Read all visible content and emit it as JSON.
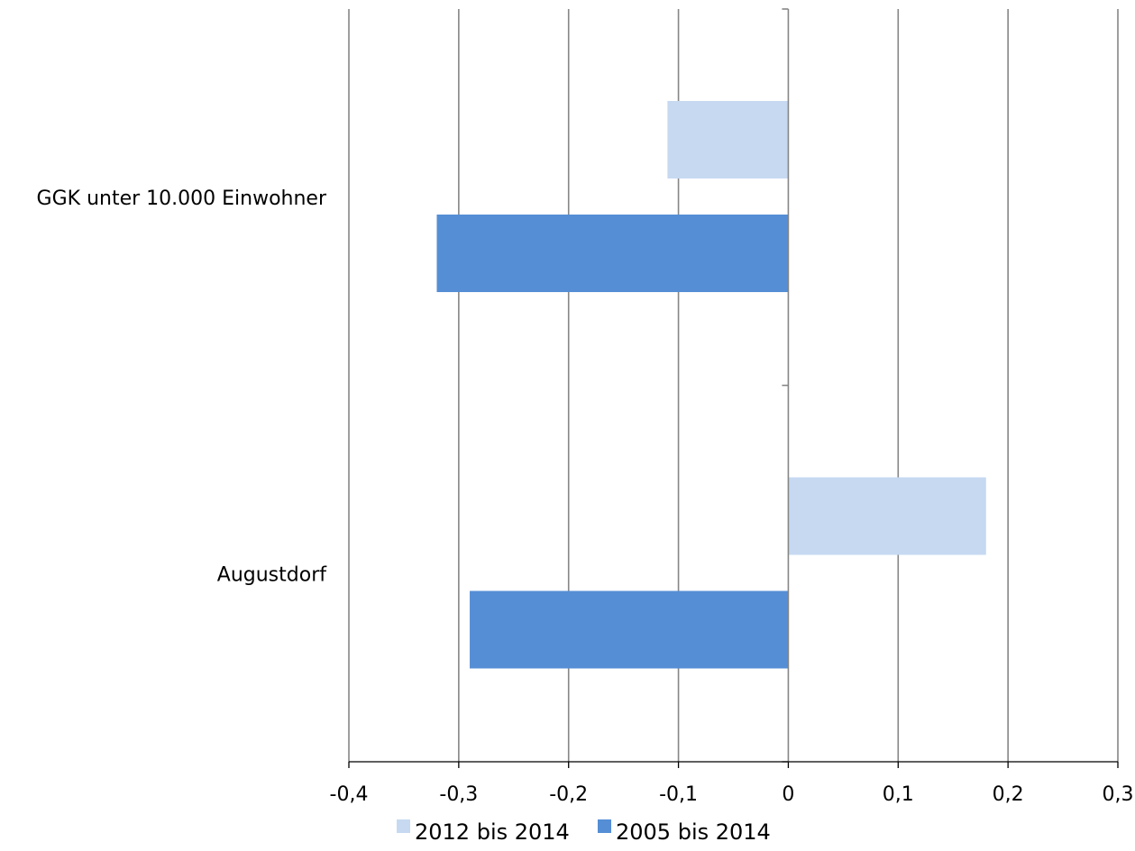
{
  "chart_data": {
    "type": "bar",
    "orientation": "horizontal",
    "categories": [
      "GGK unter 10.000 Einwohner",
      "Augustdorf"
    ],
    "series": [
      {
        "name": "2012 bis 2014",
        "values": [
          -0.11,
          0.18
        ],
        "color": "#c6d9f1"
      },
      {
        "name": "2005 bis 2014",
        "values": [
          -0.32,
          -0.29
        ],
        "color": "#558ed5"
      }
    ],
    "xlim": [
      -0.4,
      0.3
    ],
    "xticks": [
      "-0,4",
      "-0,3",
      "-0,2",
      "-0,1",
      "0",
      "0,1",
      "0,2",
      "0,3"
    ],
    "xtick_values": [
      -0.4,
      -0.3,
      -0.2,
      -0.1,
      0,
      0.1,
      0.2,
      0.3
    ],
    "grid": true,
    "gridline_color": "#868686",
    "legend_position": "bottom"
  }
}
